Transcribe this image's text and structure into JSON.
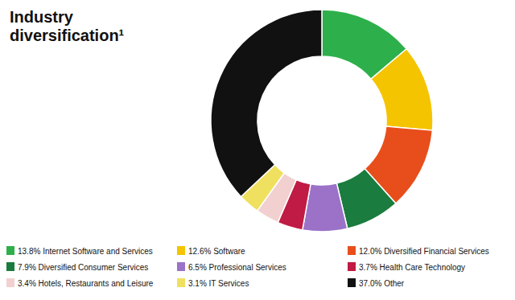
{
  "chart_data": {
    "type": "donut",
    "title": "Industry\ndiversification¹",
    "categories": [
      "13.8% Internet Software and Services",
      "12.6% Software",
      "12.0% Diversified Financial Services",
      "7.9% Diversified Consumer Services",
      "6.5% Professional Services",
      "3.7% Health Care Technology",
      "3.4% Hotels, Restaurants and Leisure",
      "3.1% IT Services",
      "37.0% Other"
    ],
    "values": [
      13.8,
      12.6,
      12.0,
      7.9,
      6.5,
      3.7,
      3.4,
      3.1,
      37.0
    ],
    "colors": [
      "#2db04b",
      "#f5c400",
      "#e84e1b",
      "#1a7c3e",
      "#9b72c8",
      "#c01b44",
      "#f2d0d0",
      "#f0e060",
      "#111111"
    ],
    "legend": "bottom"
  }
}
